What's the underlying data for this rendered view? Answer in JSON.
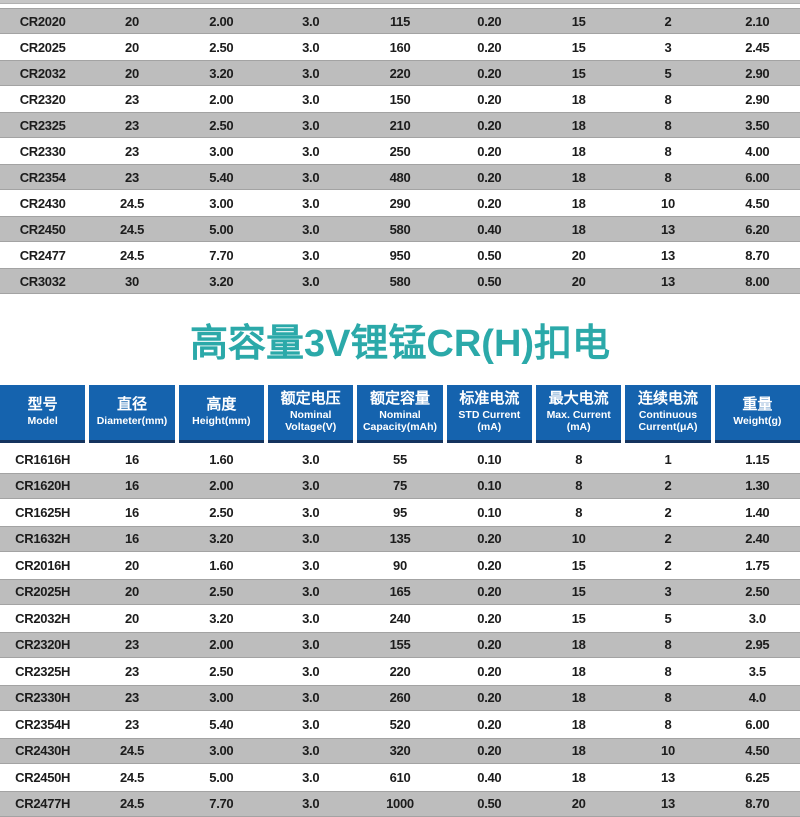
{
  "colors": {
    "header_blue": "#1563ae",
    "header_underline_navy": "#14335e",
    "stripe_gray": "#bdbdbd",
    "title_teal": "#2ba9a9",
    "text_dark": "#1c1c1c"
  },
  "section": {
    "title": "高容量3V锂锰CR(H)扣电"
  },
  "header": {
    "columns": [
      {
        "cn": "型号",
        "en": "Model"
      },
      {
        "cn": "直径",
        "en": "Diameter(mm)"
      },
      {
        "cn": "高度",
        "en": "Height(mm)"
      },
      {
        "cn": "额定电压",
        "en": "Nominal Voltage(V)"
      },
      {
        "cn": "额定容量",
        "en": "Nominal Capacity(mAh)"
      },
      {
        "cn": "标准电流",
        "en": "STD Current (mA)"
      },
      {
        "cn": "最大电流",
        "en": "Max. Current (mA)"
      },
      {
        "cn": "连续电流",
        "en": "Continuous Current(μA)"
      },
      {
        "cn": "重量",
        "en": "Weight(g)"
      }
    ]
  },
  "table1": {
    "first_row_gray": true,
    "rows": [
      [
        "CR2020",
        "20",
        "2.00",
        "3.0",
        "115",
        "0.20",
        "15",
        "2",
        "2.10"
      ],
      [
        "CR2025",
        "20",
        "2.50",
        "3.0",
        "160",
        "0.20",
        "15",
        "3",
        "2.45"
      ],
      [
        "CR2032",
        "20",
        "3.20",
        "3.0",
        "220",
        "0.20",
        "15",
        "5",
        "2.90"
      ],
      [
        "CR2320",
        "23",
        "2.00",
        "3.0",
        "150",
        "0.20",
        "18",
        "8",
        "2.90"
      ],
      [
        "CR2325",
        "23",
        "2.50",
        "3.0",
        "210",
        "0.20",
        "18",
        "8",
        "3.50"
      ],
      [
        "CR2330",
        "23",
        "3.00",
        "3.0",
        "250",
        "0.20",
        "18",
        "8",
        "4.00"
      ],
      [
        "CR2354",
        "23",
        "5.40",
        "3.0",
        "480",
        "0.20",
        "18",
        "8",
        "6.00"
      ],
      [
        "CR2430",
        "24.5",
        "3.00",
        "3.0",
        "290",
        "0.20",
        "18",
        "10",
        "4.50"
      ],
      [
        "CR2450",
        "24.5",
        "5.00",
        "3.0",
        "580",
        "0.40",
        "18",
        "13",
        "6.20"
      ],
      [
        "CR2477",
        "24.5",
        "7.70",
        "3.0",
        "950",
        "0.50",
        "20",
        "13",
        "8.70"
      ],
      [
        "CR3032",
        "30",
        "3.20",
        "3.0",
        "580",
        "0.50",
        "20",
        "13",
        "8.00"
      ]
    ]
  },
  "table2": {
    "first_row_gray": false,
    "rows": [
      [
        "CR1616H",
        "16",
        "1.60",
        "3.0",
        "55",
        "0.10",
        "8",
        "1",
        "1.15"
      ],
      [
        "CR1620H",
        "16",
        "2.00",
        "3.0",
        "75",
        "0.10",
        "8",
        "2",
        "1.30"
      ],
      [
        "CR1625H",
        "16",
        "2.50",
        "3.0",
        "95",
        "0.10",
        "8",
        "2",
        "1.40"
      ],
      [
        "CR1632H",
        "16",
        "3.20",
        "3.0",
        "135",
        "0.20",
        "10",
        "2",
        "2.40"
      ],
      [
        "CR2016H",
        "20",
        "1.60",
        "3.0",
        "90",
        "0.20",
        "15",
        "2",
        "1.75"
      ],
      [
        "CR2025H",
        "20",
        "2.50",
        "3.0",
        "165",
        "0.20",
        "15",
        "3",
        "2.50"
      ],
      [
        "CR2032H",
        "20",
        "3.20",
        "3.0",
        "240",
        "0.20",
        "15",
        "5",
        "3.0"
      ],
      [
        "CR2320H",
        "23",
        "2.00",
        "3.0",
        "155",
        "0.20",
        "18",
        "8",
        "2.95"
      ],
      [
        "CR2325H",
        "23",
        "2.50",
        "3.0",
        "220",
        "0.20",
        "18",
        "8",
        "3.5"
      ],
      [
        "CR2330H",
        "23",
        "3.00",
        "3.0",
        "260",
        "0.20",
        "18",
        "8",
        "4.0"
      ],
      [
        "CR2354H",
        "23",
        "5.40",
        "3.0",
        "520",
        "0.20",
        "18",
        "8",
        "6.00"
      ],
      [
        "CR2430H",
        "24.5",
        "3.00",
        "3.0",
        "320",
        "0.20",
        "18",
        "10",
        "4.50"
      ],
      [
        "CR2450H",
        "24.5",
        "5.00",
        "3.0",
        "610",
        "0.40",
        "18",
        "13",
        "6.25"
      ],
      [
        "CR2477H",
        "24.5",
        "7.70",
        "3.0",
        "1000",
        "0.50",
        "20",
        "13",
        "8.70"
      ]
    ]
  }
}
